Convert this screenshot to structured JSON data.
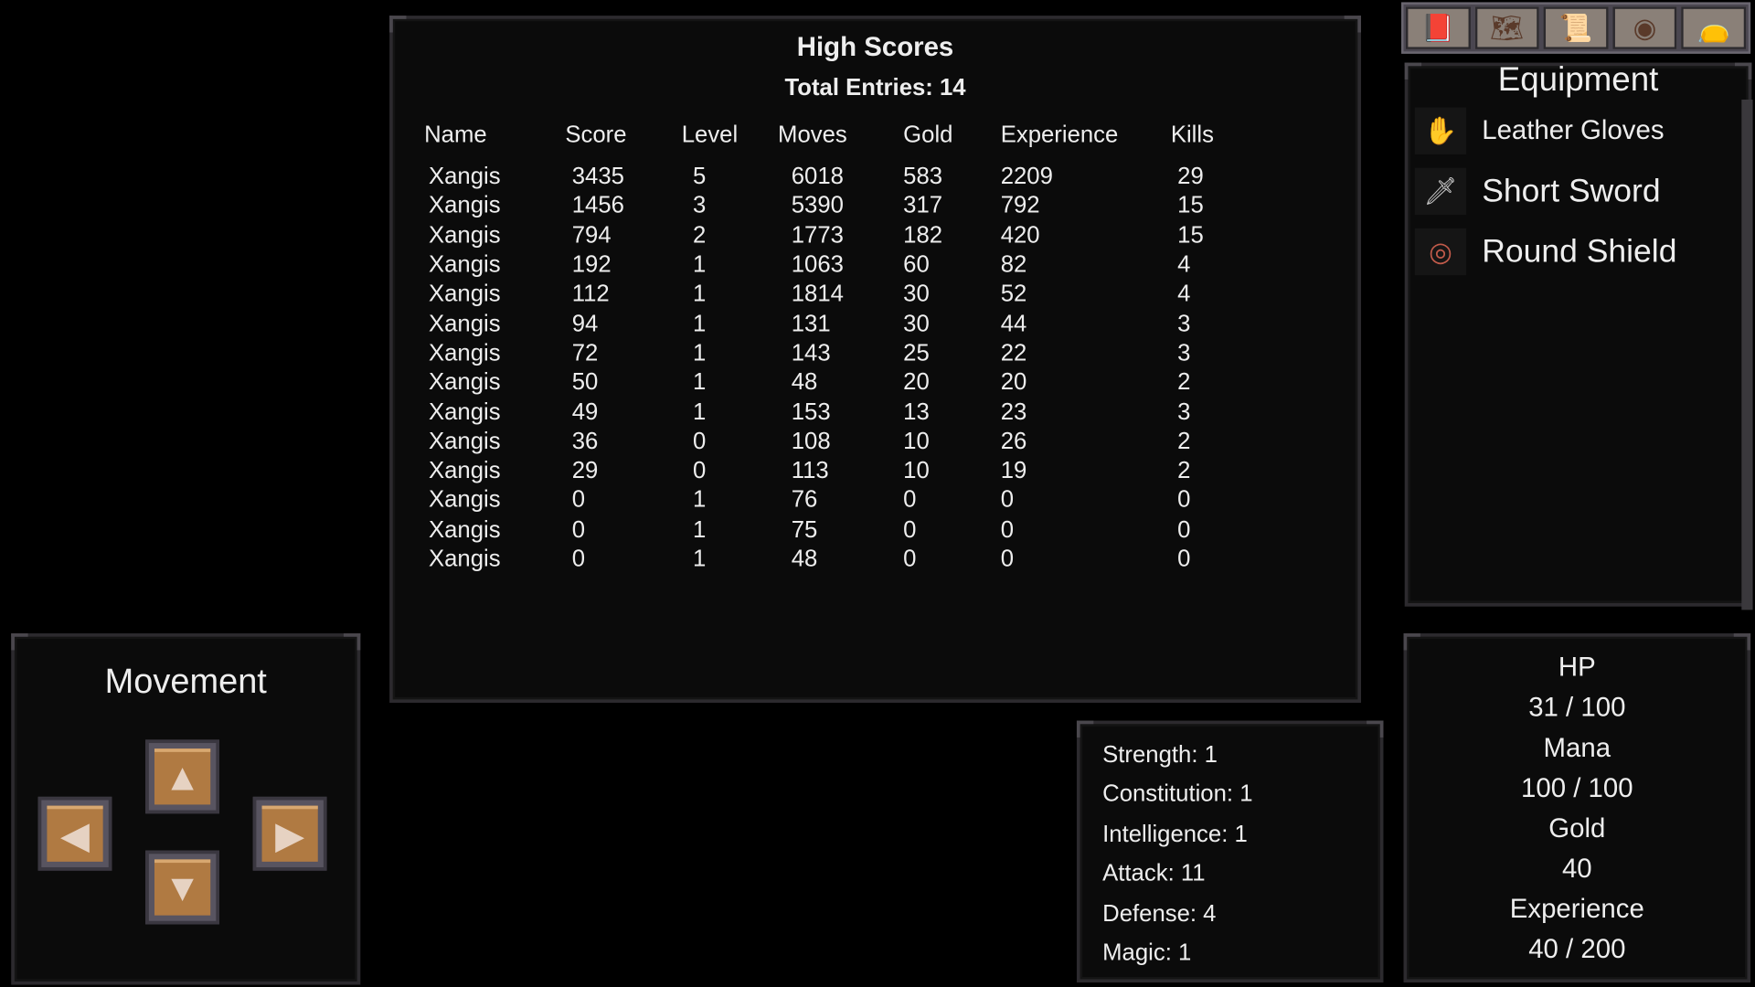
{
  "high_scores": {
    "title": "High Scores",
    "total": "Total Entries: 14",
    "columns": [
      "Name",
      "Score",
      "Level",
      "Moves",
      "Gold",
      "Experience",
      "Kills"
    ],
    "rows": [
      [
        "Xangis",
        "3435",
        "5",
        "6018",
        "583",
        "2209",
        "29"
      ],
      [
        "Xangis",
        "1456",
        "3",
        "5390",
        "317",
        "792",
        "15"
      ],
      [
        "Xangis",
        "794",
        "2",
        "1773",
        "182",
        "420",
        "15"
      ],
      [
        "Xangis",
        "192",
        "1",
        "1063",
        "60",
        "82",
        "4"
      ],
      [
        "Xangis",
        "112",
        "1",
        "1814",
        "30",
        "52",
        "4"
      ],
      [
        "Xangis",
        "94",
        "1",
        "131",
        "30",
        "44",
        "3"
      ],
      [
        "Xangis",
        "72",
        "1",
        "143",
        "25",
        "22",
        "3"
      ],
      [
        "Xangis",
        "50",
        "1",
        "48",
        "20",
        "20",
        "2"
      ],
      [
        "Xangis",
        "49",
        "1",
        "153",
        "13",
        "23",
        "3"
      ],
      [
        "Xangis",
        "36",
        "0",
        "108",
        "10",
        "26",
        "2"
      ],
      [
        "Xangis",
        "29",
        "0",
        "113",
        "10",
        "19",
        "2"
      ],
      [
        "Xangis",
        "0",
        "1",
        "76",
        "0",
        "0",
        "0"
      ],
      [
        "Xangis",
        "0",
        "1",
        "75",
        "0",
        "0",
        "0"
      ],
      [
        "Xangis",
        "0",
        "1",
        "48",
        "0",
        "0",
        "0"
      ]
    ]
  },
  "equipment": {
    "title": "Equipment",
    "tabs": [
      "spellbook-icon",
      "map-icon",
      "scroll-icon",
      "shield-icon",
      "bag-icon"
    ],
    "items": [
      {
        "name": "Leather Gloves",
        "icon": "glove-icon"
      },
      {
        "name": "Short Sword",
        "icon": "sword-icon"
      },
      {
        "name": "Round Shield",
        "icon": "shield-icon"
      }
    ]
  },
  "movement": {
    "title": "Movement"
  },
  "stats": [
    "Strength: 1",
    "Constitution: 1",
    "Intelligence: 1",
    "Attack: 11",
    "Defense: 4",
    "Magic: 1"
  ],
  "vitals": {
    "hp_label": "HP",
    "hp": "31 / 100",
    "mana_label": "Mana",
    "mana": "100 / 100",
    "gold_label": "Gold",
    "gold": "40",
    "xp_label": "Experience",
    "xp": "40 / 200"
  }
}
